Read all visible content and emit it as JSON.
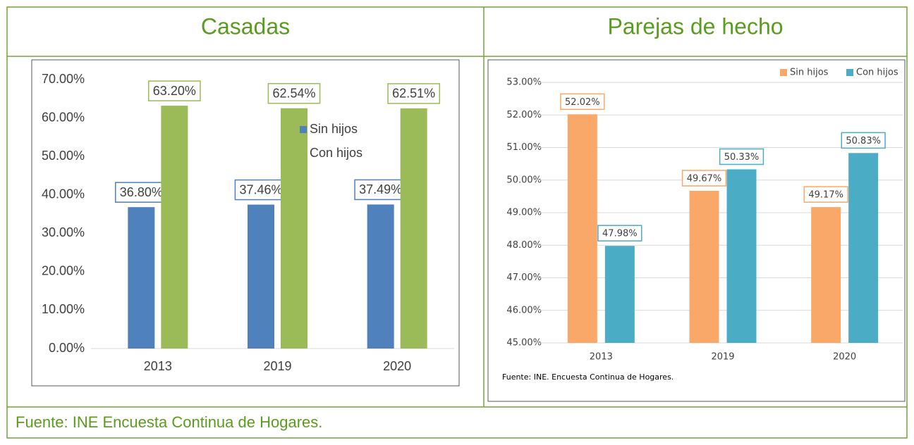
{
  "chart_data": [
    {
      "type": "bar",
      "title": "Casadas",
      "categories": [
        "2013",
        "2019",
        "2020"
      ],
      "series": [
        {
          "name": "Sin hijos",
          "color": "#4f81bd",
          "values": [
            36.8,
            37.46,
            37.49
          ],
          "value_labels": [
            "36.80%",
            "37.46%",
            "37.49%"
          ]
        },
        {
          "name": "Con hijos",
          "color": "#9bbb59",
          "values": [
            63.2,
            62.54,
            62.51
          ],
          "value_labels": [
            "63.20%",
            "62.54%",
            "62.51%"
          ]
        }
      ],
      "ylim": [
        0,
        70
      ],
      "yticks": [
        {
          "value": 0,
          "label": "0.00%"
        },
        {
          "value": 10,
          "label": "10.00%"
        },
        {
          "value": 20,
          "label": "20.00%"
        },
        {
          "value": 30,
          "label": "30.00%"
        },
        {
          "value": 40,
          "label": "40.00%"
        },
        {
          "value": 50,
          "label": "50.00%"
        },
        {
          "value": 60,
          "label": "60.00%"
        },
        {
          "value": 70,
          "label": "70.00%"
        }
      ],
      "grid": false,
      "legend": "right"
    },
    {
      "type": "bar",
      "title": "Parejas de hecho",
      "categories": [
        "2013",
        "2019",
        "2020"
      ],
      "series": [
        {
          "name": "Sin hijos",
          "color": "#f9a86a",
          "values": [
            52.02,
            49.67,
            49.17
          ],
          "value_labels": [
            "52.02%",
            "49.67%",
            "49.17%"
          ]
        },
        {
          "name": "Con hijos",
          "color": "#4bacc6",
          "values": [
            47.98,
            50.33,
            50.83
          ],
          "value_labels": [
            "47.98%",
            "50.33%",
            "50.83%"
          ]
        }
      ],
      "ylim": [
        45,
        53
      ],
      "yticks": [
        {
          "value": 45,
          "label": "45.00%"
        },
        {
          "value": 46,
          "label": "46.00%"
        },
        {
          "value": 47,
          "label": "47.00%"
        },
        {
          "value": 48,
          "label": "48.00%"
        },
        {
          "value": 49,
          "label": "49.00%"
        },
        {
          "value": 50,
          "label": "50.00%"
        },
        {
          "value": 51,
          "label": "51.00%"
        },
        {
          "value": 52,
          "label": "52.00%"
        },
        {
          "value": 53,
          "label": "53.00%"
        }
      ],
      "grid": true,
      "legend": "top-right",
      "note": "Fuente: INE. Encuesta Continua de Hogares."
    }
  ],
  "source": "Fuente: INE Encuesta Continua de Hogares."
}
